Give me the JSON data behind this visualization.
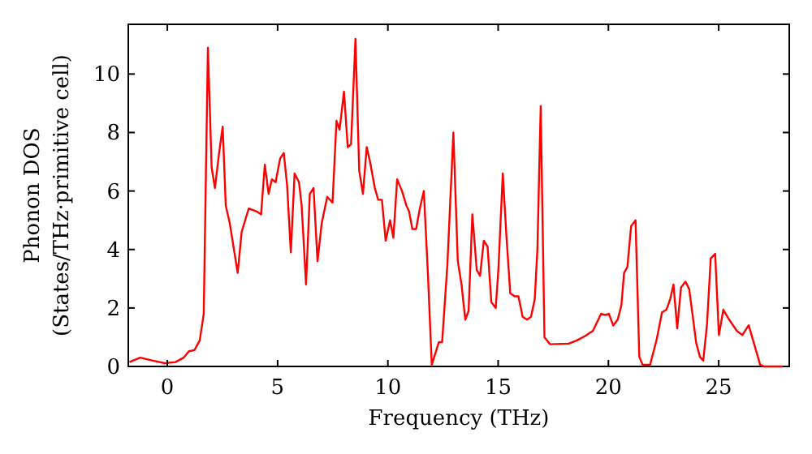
{
  "chart_data": {
    "type": "line",
    "xlabel": "Frequency (THz)",
    "ylabel": "Phonon DOS\n(States/THz·primitive cell)",
    "xlim": [
      -1.77,
      28.2
    ],
    "ylim": [
      0,
      11.7
    ],
    "xticks": [
      0,
      5,
      10,
      15,
      20,
      25
    ],
    "yticks": [
      0,
      2,
      4,
      6,
      8,
      10
    ],
    "grid": false,
    "marker": "none",
    "line_style": "solid",
    "series": [
      {
        "color": "#ff0000",
        "x": [
          -1.72,
          -1.23,
          -0.61,
          -0.12,
          0.37,
          0.74,
          0.98,
          1.23,
          1.47,
          1.65,
          1.84,
          2.01,
          2.16,
          2.33,
          2.51,
          2.65,
          2.83,
          3.19,
          3.37,
          3.69,
          4.05,
          4.25,
          4.42,
          4.59,
          4.74,
          4.91,
          5.11,
          5.28,
          5.43,
          5.6,
          5.77,
          5.97,
          6.09,
          6.29,
          6.46,
          6.63,
          6.81,
          7.0,
          7.25,
          7.49,
          7.67,
          7.81,
          8.01,
          8.18,
          8.33,
          8.53,
          8.7,
          8.87,
          9.04,
          9.19,
          9.41,
          9.56,
          9.73,
          9.9,
          10.1,
          10.25,
          10.42,
          10.64,
          10.84,
          10.96,
          11.11,
          11.28,
          11.45,
          11.63,
          11.82,
          11.99,
          12.31,
          12.46,
          12.7,
          12.97,
          13.17,
          13.34,
          13.51,
          13.66,
          13.83,
          14.03,
          14.18,
          14.35,
          14.52,
          14.69,
          14.89,
          15.01,
          15.21,
          15.38,
          15.55,
          15.75,
          15.92,
          16.11,
          16.31,
          16.49,
          16.66,
          16.78,
          16.93,
          17.1,
          17.35,
          18.2,
          18.57,
          18.94,
          19.3,
          19.67,
          19.85,
          20.02,
          20.22,
          20.42,
          20.59,
          20.71,
          20.86,
          21.03,
          21.23,
          21.4,
          21.55,
          21.89,
          22.19,
          22.43,
          22.63,
          22.8,
          22.95,
          23.12,
          23.29,
          23.49,
          23.66,
          23.81,
          23.98,
          24.15,
          24.3,
          24.47,
          24.64,
          24.84,
          25.01,
          25.21,
          25.45,
          25.82,
          26.07,
          26.36,
          26.56,
          26.88,
          27.05,
          27.9
        ],
        "values": [
          0.15,
          0.3,
          0.19,
          0.11,
          0.15,
          0.3,
          0.52,
          0.56,
          0.89,
          1.8,
          10.9,
          6.8,
          6.1,
          7.2,
          8.2,
          5.5,
          4.9,
          3.2,
          4.6,
          5.4,
          5.3,
          5.2,
          6.9,
          5.9,
          6.4,
          6.3,
          7.1,
          7.3,
          6.2,
          3.9,
          6.6,
          6.3,
          5.5,
          2.8,
          5.9,
          6.1,
          3.6,
          4.9,
          5.8,
          5.6,
          8.4,
          8.1,
          9.4,
          7.5,
          7.6,
          11.2,
          6.7,
          5.9,
          7.5,
          7.0,
          6.1,
          5.7,
          5.7,
          4.3,
          5.0,
          4.4,
          6.4,
          6.0,
          5.5,
          5.3,
          4.7,
          4.7,
          5.4,
          6.0,
          3.1,
          0.06,
          0.83,
          0.83,
          3.5,
          8.0,
          3.6,
          2.8,
          1.6,
          1.9,
          5.2,
          3.3,
          3.1,
          4.3,
          4.1,
          2.2,
          2.0,
          3.3,
          6.6,
          4.4,
          2.5,
          2.4,
          2.4,
          1.7,
          1.6,
          1.7,
          2.3,
          4.0,
          8.9,
          1.0,
          0.76,
          0.78,
          0.89,
          1.04,
          1.22,
          1.8,
          1.76,
          1.8,
          1.4,
          1.6,
          2.1,
          3.2,
          3.4,
          4.8,
          5.0,
          0.33,
          0.06,
          0.06,
          0.93,
          1.85,
          1.94,
          2.3,
          2.8,
          1.3,
          2.7,
          2.9,
          2.65,
          1.8,
          0.8,
          0.33,
          0.2,
          1.44,
          3.7,
          3.85,
          1.07,
          1.94,
          1.63,
          1.22,
          1.07,
          1.41,
          0.89,
          0.06,
          0,
          0
        ]
      }
    ]
  }
}
